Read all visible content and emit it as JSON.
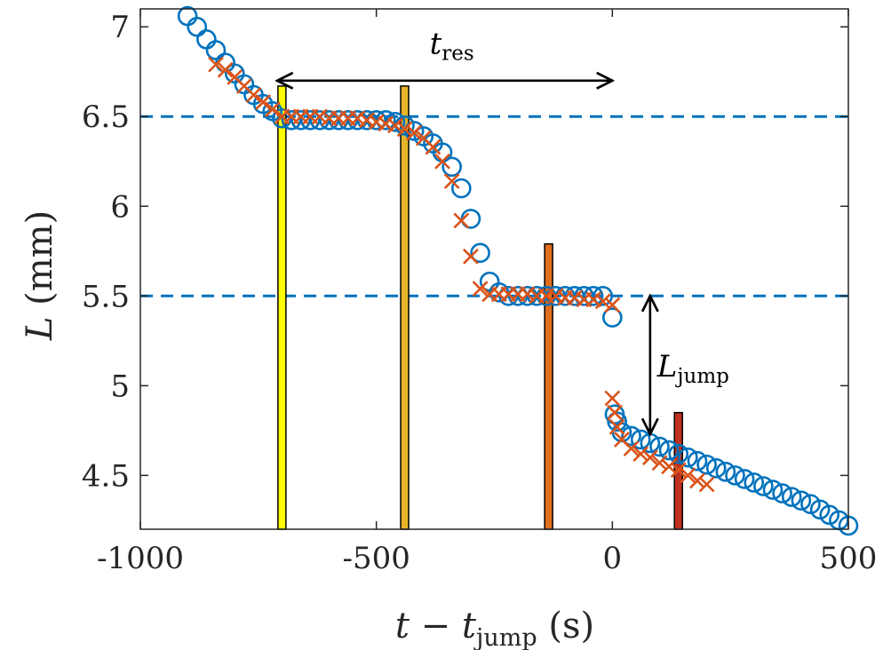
{
  "chart_data": {
    "type": "scatter",
    "xlabel": {
      "var": "t",
      "op": " − ",
      "var2": "t",
      "sub": "jump",
      "unit": " (s)"
    },
    "ylabel": {
      "var": "L",
      "unit": " (mm)"
    },
    "xlim": [
      -1000,
      500
    ],
    "ylim": [
      4.2,
      7.1
    ],
    "xticks": [
      -1000,
      -500,
      0,
      500
    ],
    "xtick_labels": [
      "-1000",
      "-500",
      "0",
      "500"
    ],
    "yticks": [
      4.5,
      5,
      5.5,
      6,
      6.5,
      7
    ],
    "ytick_labels": [
      "4.5",
      "5",
      "5.5",
      "6",
      "6.5",
      "7"
    ],
    "grid": false,
    "reference_lines": [
      {
        "y": 6.5,
        "style": "dashed",
        "color": "#0072BD"
      },
      {
        "y": 5.5,
        "style": "dashed",
        "color": "#0072BD"
      }
    ],
    "series": [
      {
        "marker": "circle",
        "color": "#0072BD",
        "x": [
          -900,
          -880,
          -860,
          -840,
          -820,
          -800,
          -780,
          -760,
          -740,
          -720,
          -700,
          -680,
          -660,
          -640,
          -620,
          -600,
          -580,
          -560,
          -540,
          -520,
          -500,
          -480,
          -460,
          -440,
          -420,
          -400,
          -380,
          -360,
          -340,
          -320,
          -300,
          -280,
          -260,
          -240,
          -220,
          -200,
          -180,
          -160,
          -140,
          -120,
          -100,
          -80,
          -60,
          -40,
          -20,
          0,
          5,
          10,
          20,
          40,
          60,
          80,
          100,
          120,
          140,
          160,
          180,
          200,
          220,
          240,
          260,
          280,
          300,
          320,
          340,
          360,
          380,
          400,
          420,
          440,
          460,
          480,
          500
        ],
        "y": [
          7.06,
          7.0,
          6.93,
          6.87,
          6.8,
          6.74,
          6.68,
          6.62,
          6.57,
          6.53,
          6.49,
          6.48,
          6.48,
          6.48,
          6.48,
          6.48,
          6.48,
          6.48,
          6.48,
          6.48,
          6.48,
          6.48,
          6.47,
          6.45,
          6.42,
          6.39,
          6.35,
          6.3,
          6.22,
          6.1,
          5.93,
          5.74,
          5.58,
          5.52,
          5.5,
          5.5,
          5.5,
          5.5,
          5.5,
          5.5,
          5.5,
          5.5,
          5.5,
          5.5,
          5.5,
          5.38,
          4.84,
          4.8,
          4.74,
          4.72,
          4.7,
          4.68,
          4.66,
          4.64,
          4.62,
          4.6,
          4.58,
          4.56,
          4.54,
          4.52,
          4.5,
          4.48,
          4.46,
          4.44,
          4.42,
          4.4,
          4.38,
          4.36,
          4.34,
          4.31,
          4.28,
          4.25,
          4.22
        ]
      },
      {
        "marker": "x",
        "color": "#D95319",
        "x": [
          -840,
          -820,
          -800,
          -780,
          -760,
          -740,
          -720,
          -700,
          -680,
          -660,
          -640,
          -620,
          -600,
          -580,
          -560,
          -540,
          -520,
          -500,
          -480,
          -460,
          -440,
          -420,
          -400,
          -380,
          -360,
          -340,
          -320,
          -300,
          -280,
          -260,
          -240,
          -220,
          -200,
          -180,
          -160,
          -140,
          -120,
          -100,
          -80,
          -60,
          -40,
          -20,
          0,
          0,
          5,
          10,
          20,
          40,
          60,
          80,
          100,
          120,
          140,
          160,
          180,
          200
        ],
        "y": [
          6.79,
          6.76,
          6.72,
          6.67,
          6.62,
          6.58,
          6.54,
          6.5,
          6.5,
          6.5,
          6.5,
          6.5,
          6.49,
          6.49,
          6.49,
          6.49,
          6.48,
          6.47,
          6.46,
          6.45,
          6.43,
          6.41,
          6.38,
          6.33,
          6.25,
          6.14,
          5.92,
          5.72,
          5.54,
          5.51,
          5.51,
          5.51,
          5.51,
          5.51,
          5.5,
          5.5,
          5.5,
          5.49,
          5.49,
          5.48,
          5.48,
          5.47,
          5.45,
          4.93,
          4.85,
          4.77,
          4.7,
          4.65,
          4.62,
          4.6,
          4.57,
          4.55,
          4.53,
          4.5,
          4.47,
          4.45
        ]
      }
    ],
    "vertical_bars": [
      {
        "x": -700,
        "top": 6.67,
        "color": "#FFFF00"
      },
      {
        "x": -440,
        "top": 6.67,
        "color": "#E8B52A"
      },
      {
        "x": -135,
        "top": 5.79,
        "color": "#E06E1E"
      },
      {
        "x": 140,
        "top": 4.85,
        "color": "#C03020"
      }
    ],
    "annotations": [
      {
        "type": "double-arrow-h",
        "from": [
          -710,
          6.7
        ],
        "to": [
          0,
          6.7
        ],
        "label": {
          "var": "t",
          "sub": "res"
        },
        "label_at": [
          -340,
          6.85
        ]
      },
      {
        "type": "double-arrow-v",
        "from": [
          80,
          5.5
        ],
        "to": [
          80,
          4.73
        ],
        "label": {
          "var": "L",
          "sub": "jump"
        },
        "label_at": [
          95,
          5.05
        ]
      }
    ]
  }
}
